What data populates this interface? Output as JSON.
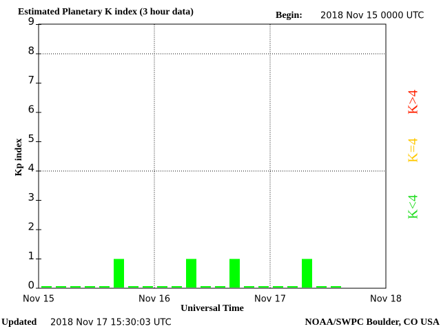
{
  "chart_data": {
    "type": "bar",
    "title": "Estimated Planetary K index (3 hour data)",
    "begin_label": "Begin:",
    "begin": "2018 Nov 15 0000 UTC",
    "ylabel": "Kp index",
    "xlabel": "Universal Time",
    "updated_label": "Updated",
    "updated": "2018 Nov 17 15:30:03 UTC",
    "credit": "NOAA/SWPC Boulder, CO USA",
    "values": [
      0,
      0,
      0,
      0,
      0,
      1,
      0,
      0,
      0,
      0,
      1,
      0,
      0,
      1,
      0,
      0,
      0,
      0,
      1,
      0,
      0
    ],
    "color": "#00ff00",
    "ylim": [
      0,
      9
    ],
    "yticks": [
      0,
      1,
      2,
      3,
      4,
      5,
      6,
      7,
      8,
      9
    ],
    "xticks": [
      "Nov 15",
      "Nov 16",
      "Nov 17",
      "Nov 18"
    ],
    "grid_y": [
      4,
      8
    ],
    "legend": [
      {
        "name": "K<4",
        "color": "#22dd22"
      },
      {
        "name": "K=4",
        "color": "#ffc800"
      },
      {
        "name": "K>4",
        "color": "#ff2000"
      }
    ]
  }
}
